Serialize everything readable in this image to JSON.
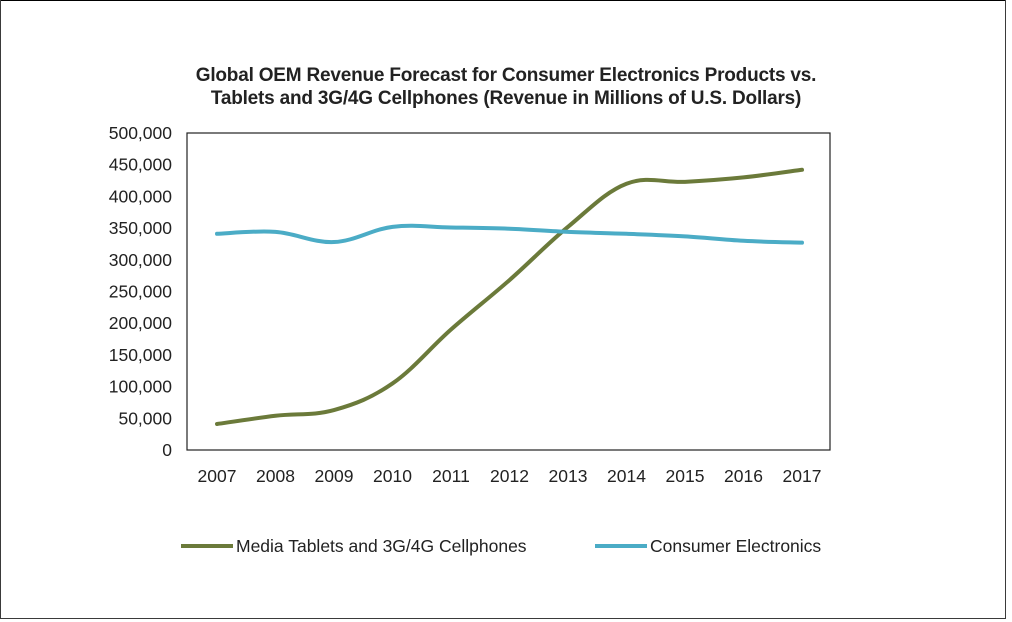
{
  "chart_data": {
    "type": "line",
    "title_line1": "Global OEM Revenue Forecast for Consumer Electronics Products vs.",
    "title_line2": "Tablets and 3G/4G Cellphones (Revenue in Millions of U.S. Dollars)",
    "xlabel": "",
    "ylabel": "",
    "categories": [
      "2007",
      "2008",
      "2009",
      "2010",
      "2011",
      "2012",
      "2013",
      "2014",
      "2015",
      "2016",
      "2017"
    ],
    "ylim": [
      0,
      500000
    ],
    "yticks": [
      0,
      50000,
      100000,
      150000,
      200000,
      250000,
      300000,
      350000,
      400000,
      450000,
      500000
    ],
    "ytick_labels": [
      "0",
      "50,000",
      "100,000",
      "150,000",
      "200,000",
      "250,000",
      "300,000",
      "350,000",
      "400,000",
      "450,000",
      "500,000"
    ],
    "grid": false,
    "legend_position": "bottom",
    "series": [
      {
        "name": "Media Tablets and 3G/4G Cellphones",
        "color": "#6b7a3a",
        "values": [
          41000,
          54000,
          63000,
          105000,
          190000,
          268000,
          352000,
          420000,
          423000,
          430000,
          442000
        ]
      },
      {
        "name": "Consumer Electronics",
        "color": "#4bacc6",
        "values": [
          341000,
          344000,
          328000,
          352000,
          351000,
          349000,
          344000,
          341000,
          337000,
          330000,
          327000
        ]
      }
    ]
  }
}
